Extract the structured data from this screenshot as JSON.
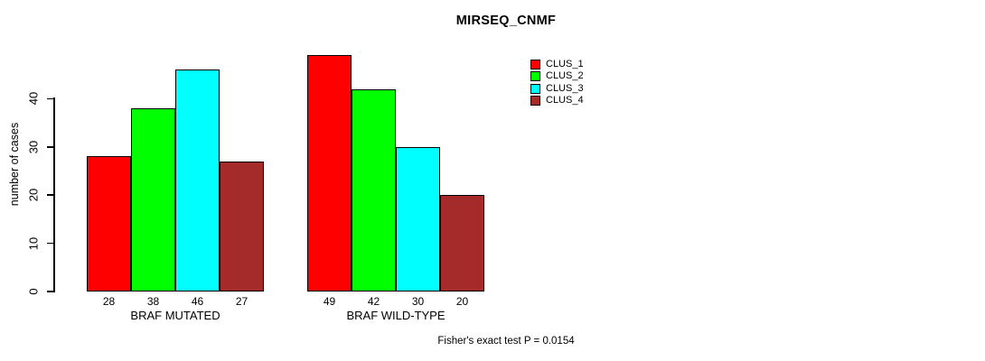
{
  "chart_data": {
    "type": "bar",
    "title": "MIRSEQ_CNMF",
    "ylabel": "number of cases",
    "xlabel": "",
    "annotation": "Fisher's exact test P = 0.0154",
    "categories": [
      "BRAF MUTATED",
      "BRAF WILD-TYPE"
    ],
    "series": [
      {
        "name": "CLUS_1",
        "color": "#FF0000",
        "values": [
          28,
          49
        ]
      },
      {
        "name": "CLUS_2",
        "color": "#00FF00",
        "values": [
          38,
          42
        ]
      },
      {
        "name": "CLUS_3",
        "color": "#00FFFF",
        "values": [
          46,
          30
        ]
      },
      {
        "name": "CLUS_4",
        "color": "#A52A2A",
        "values": [
          27,
          20
        ]
      }
    ],
    "yticks": [
      0,
      10,
      20,
      30,
      40
    ],
    "ylim": [
      0,
      49
    ],
    "grid": false,
    "bar_value_labels_shown": true,
    "legend_position": "top-right",
    "legend_entries": [
      "CLUS_1",
      "CLUS_2",
      "CLUS_3",
      "CLUS_4"
    ]
  },
  "colors": {
    "background": "#FFFFFF",
    "axis": "#000000",
    "text": "#000000"
  }
}
